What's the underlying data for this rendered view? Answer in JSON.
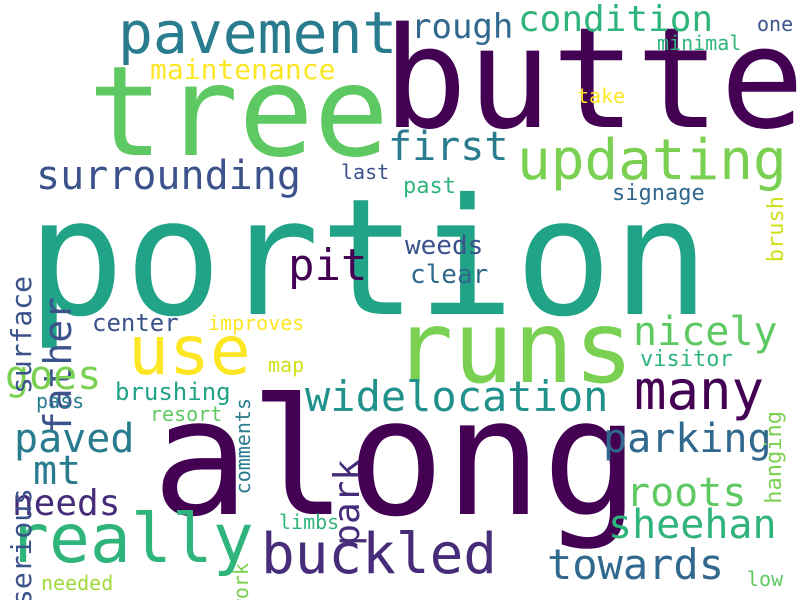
{
  "background": "#ffffff",
  "palette": {
    "dark_purple": "#440154",
    "indigo": "#472c7a",
    "slate_blue": "#3b528b",
    "steel_blue": "#31688e",
    "teal_blue": "#287c8e",
    "teal": "#21918c",
    "green_teal": "#20a386",
    "sea_green": "#2fb47c",
    "green": "#5ec962",
    "lime": "#a0da39",
    "yellow_green": "#d0e11c",
    "yellow": "#fde725"
  },
  "words": [
    {
      "text": "portion",
      "color": "#20a386"
    },
    {
      "text": "along",
      "color": "#440154"
    },
    {
      "text": "butte",
      "color": "#440154"
    },
    {
      "text": "tree",
      "color": "#5ec962"
    },
    {
      "text": "runs",
      "color": "#7ad151"
    },
    {
      "text": "pavement",
      "color": "#287c8e"
    },
    {
      "text": "really",
      "color": "#2fb47c"
    },
    {
      "text": "use",
      "color": "#fde725"
    },
    {
      "text": "updating",
      "color": "#7ad151"
    },
    {
      "text": "buckled",
      "color": "#472c7a"
    },
    {
      "text": "widelocation",
      "color": "#21918c"
    },
    {
      "text": "many",
      "color": "#440154"
    },
    {
      "text": "surrounding",
      "color": "#3b528b"
    },
    {
      "text": "parking",
      "color": "#31688e"
    },
    {
      "text": "towards",
      "color": "#31688e"
    },
    {
      "text": "condition",
      "color": "#2fb47c"
    },
    {
      "text": "nicely",
      "color": "#5ec962"
    },
    {
      "text": "roots",
      "color": "#5ec962"
    },
    {
      "text": "sheehan",
      "color": "#2fb47c"
    },
    {
      "text": "first",
      "color": "#287c8e"
    },
    {
      "text": "father",
      "color": "#3b528b"
    },
    {
      "text": "paved",
      "color": "#287c8e"
    },
    {
      "text": "pit",
      "color": "#440154"
    },
    {
      "text": "goes",
      "color": "#7ad151"
    },
    {
      "text": "mt",
      "color": "#287c8e"
    },
    {
      "text": "needs",
      "color": "#472c7a"
    },
    {
      "text": "rough",
      "color": "#31688e"
    },
    {
      "text": "maintenance",
      "color": "#fde725"
    },
    {
      "text": "surface",
      "color": "#3b528b"
    },
    {
      "text": "serious",
      "color": "#3b528b"
    },
    {
      "text": "park",
      "color": "#472c7a"
    },
    {
      "text": "weeds",
      "color": "#3b528b"
    },
    {
      "text": "clear",
      "color": "#31688e"
    },
    {
      "text": "past",
      "color": "#2fb47c"
    },
    {
      "text": "brushing",
      "color": "#20a386"
    },
    {
      "text": "center",
      "color": "#3b528b"
    },
    {
      "text": "visitor",
      "color": "#2fb47c"
    },
    {
      "text": "hanging",
      "color": "#7ad151"
    },
    {
      "text": "brush",
      "color": "#d0e11c"
    },
    {
      "text": "signage",
      "color": "#31688e"
    },
    {
      "text": "last",
      "color": "#3b528b"
    },
    {
      "text": "comments",
      "color": "#287c8e"
    },
    {
      "text": "improves",
      "color": "#fde725"
    },
    {
      "text": "map",
      "color": "#d0e11c"
    },
    {
      "text": "pass",
      "color": "#287c8e"
    },
    {
      "text": "resort",
      "color": "#5ec962"
    },
    {
      "text": "work",
      "color": "#7ad151"
    },
    {
      "text": "limbs",
      "color": "#2fb47c"
    },
    {
      "text": "needed",
      "color": "#a0da39"
    },
    {
      "text": "take",
      "color": "#fde725"
    },
    {
      "text": "minimal",
      "color": "#2fb47c"
    },
    {
      "text": "one",
      "color": "#3b528b"
    },
    {
      "text": "low",
      "color": "#5ec962"
    }
  ]
}
